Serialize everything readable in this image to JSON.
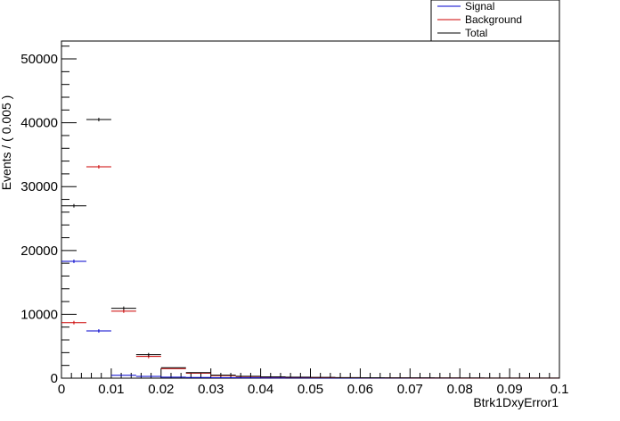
{
  "chart_data": {
    "type": "histogram",
    "xlabel": "Btrk1DxyError1",
    "ylabel": "Events / ( 0.005 )",
    "xlim": [
      0,
      0.1
    ],
    "ylim": [
      0,
      52800
    ],
    "x_ticks": [
      "0",
      "0.01",
      "0.02",
      "0.03",
      "0.04",
      "0.05",
      "0.06",
      "0.07",
      "0.08",
      "0.09",
      "0.1"
    ],
    "y_ticks": [
      "0",
      "10000",
      "20000",
      "30000",
      "40000",
      "50000"
    ],
    "bin_width": 0.005,
    "bin_centers": [
      0.0025,
      0.0075,
      0.0125,
      0.0175,
      0.0225,
      0.0275,
      0.0325,
      0.0375,
      0.0425,
      0.0475,
      0.0525,
      0.0575,
      0.0625,
      0.0675,
      0.0725,
      0.0775,
      0.0825,
      0.0875,
      0.0925,
      0.0975
    ],
    "legend": {
      "position": "top-right"
    },
    "series": [
      {
        "name": "Signal",
        "color": "#0000cc",
        "values": [
          18300,
          7400,
          450,
          280,
          150,
          100,
          70,
          50,
          40,
          30,
          25,
          20,
          15,
          12,
          10,
          8,
          6,
          5,
          4,
          3
        ]
      },
      {
        "name": "Background",
        "color": "#cc0000",
        "values": [
          8700,
          33100,
          10500,
          3400,
          1500,
          780,
          400,
          250,
          170,
          120,
          90,
          70,
          55,
          45,
          35,
          30,
          25,
          20,
          15,
          12
        ]
      },
      {
        "name": "Total",
        "color": "#000000",
        "values": [
          27000,
          40500,
          10950,
          3680,
          1650,
          880,
          470,
          300,
          210,
          150,
          115,
          90,
          70,
          57,
          45,
          38,
          31,
          25,
          19,
          15
        ]
      }
    ]
  }
}
